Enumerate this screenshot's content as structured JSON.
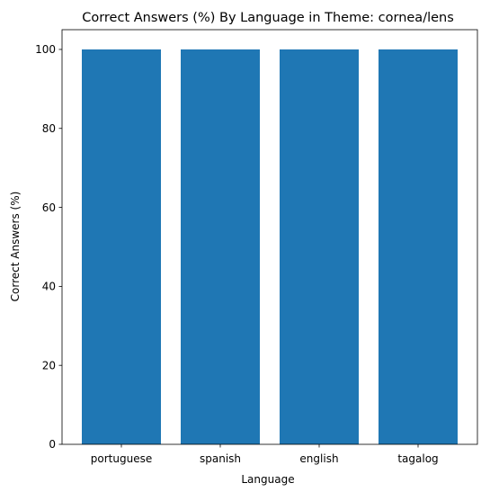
{
  "chart_data": {
    "type": "bar",
    "title": "Correct Answers (%) By Language in Theme: cornea/lens",
    "xlabel": "Language",
    "ylabel": "Correct Answers (%)",
    "categories": [
      "portuguese",
      "spanish",
      "english",
      "tagalog"
    ],
    "values": [
      100,
      100,
      100,
      100
    ],
    "ylim": [
      0,
      105
    ],
    "yticks": [
      0,
      20,
      40,
      60,
      80,
      100
    ],
    "bar_color": "#1f77b4",
    "grid": false,
    "legend": false
  }
}
